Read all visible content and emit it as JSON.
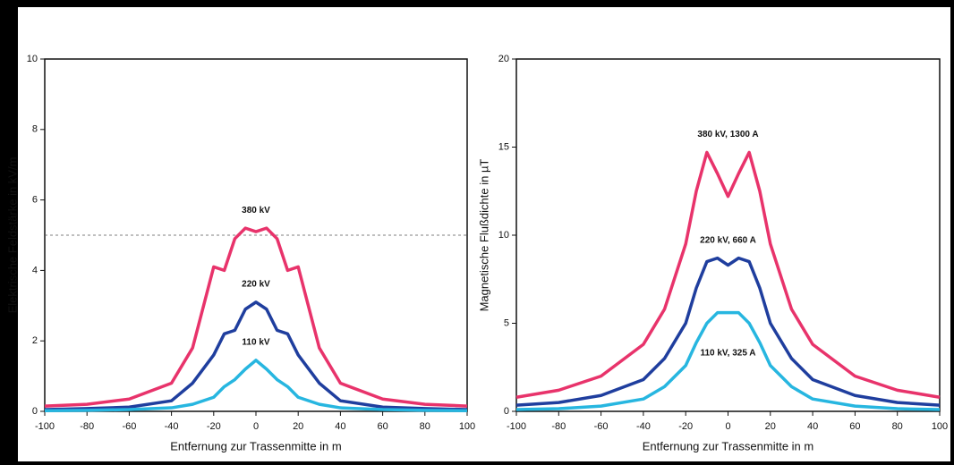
{
  "chart_data": [
    {
      "type": "line",
      "ylabel": "Elektrische Feldstärke in kV/m",
      "xlabel": "Entfernung zur Trassenmitte in m",
      "x": [
        -100,
        -80,
        -60,
        -40,
        -30,
        -20,
        -15,
        -10,
        -5,
        0,
        5,
        10,
        15,
        20,
        30,
        40,
        60,
        80,
        100
      ],
      "series": [
        {
          "name": "380 kV",
          "color": "#e8336b",
          "values": [
            0.15,
            0.2,
            0.35,
            0.8,
            1.8,
            4.1,
            4.0,
            4.9,
            5.2,
            5.1,
            5.2,
            4.9,
            4.0,
            4.1,
            1.8,
            0.8,
            0.35,
            0.2,
            0.15
          ]
        },
        {
          "name": "220 kV",
          "color": "#1f3e9e",
          "values": [
            0.05,
            0.08,
            0.12,
            0.3,
            0.8,
            1.6,
            2.2,
            2.3,
            2.9,
            3.1,
            2.9,
            2.3,
            2.2,
            1.6,
            0.8,
            0.3,
            0.12,
            0.08,
            0.05
          ]
        },
        {
          "name": "110 kV",
          "color": "#27b6e0",
          "values": [
            0.02,
            0.03,
            0.05,
            0.1,
            0.2,
            0.4,
            0.7,
            0.9,
            1.2,
            1.45,
            1.2,
            0.9,
            0.7,
            0.4,
            0.2,
            0.1,
            0.05,
            0.03,
            0.02
          ]
        }
      ],
      "hline": 5,
      "xlim": [
        -100,
        100
      ],
      "xticks": [
        -100,
        -80,
        -60,
        -40,
        -20,
        0,
        20,
        40,
        60,
        80,
        100
      ],
      "ylim": [
        0,
        10
      ],
      "yticks": [
        0,
        2,
        4,
        6,
        8,
        10
      ]
    },
    {
      "type": "line",
      "ylabel": "Magnetische Flußdichte in µT",
      "xlabel": "Entfernung zur Trassenmitte in m",
      "x": [
        -100,
        -80,
        -60,
        -40,
        -30,
        -20,
        -15,
        -10,
        -5,
        0,
        5,
        10,
        15,
        20,
        30,
        40,
        60,
        80,
        100
      ],
      "series": [
        {
          "name": "380 kV, 1300 A",
          "color": "#e8336b",
          "values": [
            0.8,
            1.2,
            2.0,
            3.8,
            5.8,
            9.5,
            12.5,
            14.7,
            13.5,
            12.2,
            13.5,
            14.7,
            12.5,
            9.5,
            5.8,
            3.8,
            2.0,
            1.2,
            0.8
          ]
        },
        {
          "name": "220 kV, 660 A",
          "color": "#1f3e9e",
          "values": [
            0.35,
            0.5,
            0.9,
            1.8,
            3.0,
            5.0,
            7.0,
            8.5,
            8.7,
            8.3,
            8.7,
            8.5,
            7.0,
            5.0,
            3.0,
            1.8,
            0.9,
            0.5,
            0.35
          ]
        },
        {
          "name": "110 kV, 325 A",
          "color": "#27b6e0",
          "values": [
            0.1,
            0.15,
            0.3,
            0.7,
            1.4,
            2.6,
            3.9,
            5.0,
            5.6,
            5.6,
            5.6,
            5.0,
            3.9,
            2.6,
            1.4,
            0.7,
            0.3,
            0.15,
            0.1
          ]
        }
      ],
      "xlim": [
        -100,
        100
      ],
      "xticks": [
        -100,
        -80,
        -60,
        -40,
        -20,
        0,
        20,
        40,
        60,
        80,
        100
      ],
      "ylim": [
        0,
        20
      ],
      "yticks": [
        0,
        5,
        10,
        15,
        20
      ]
    }
  ]
}
